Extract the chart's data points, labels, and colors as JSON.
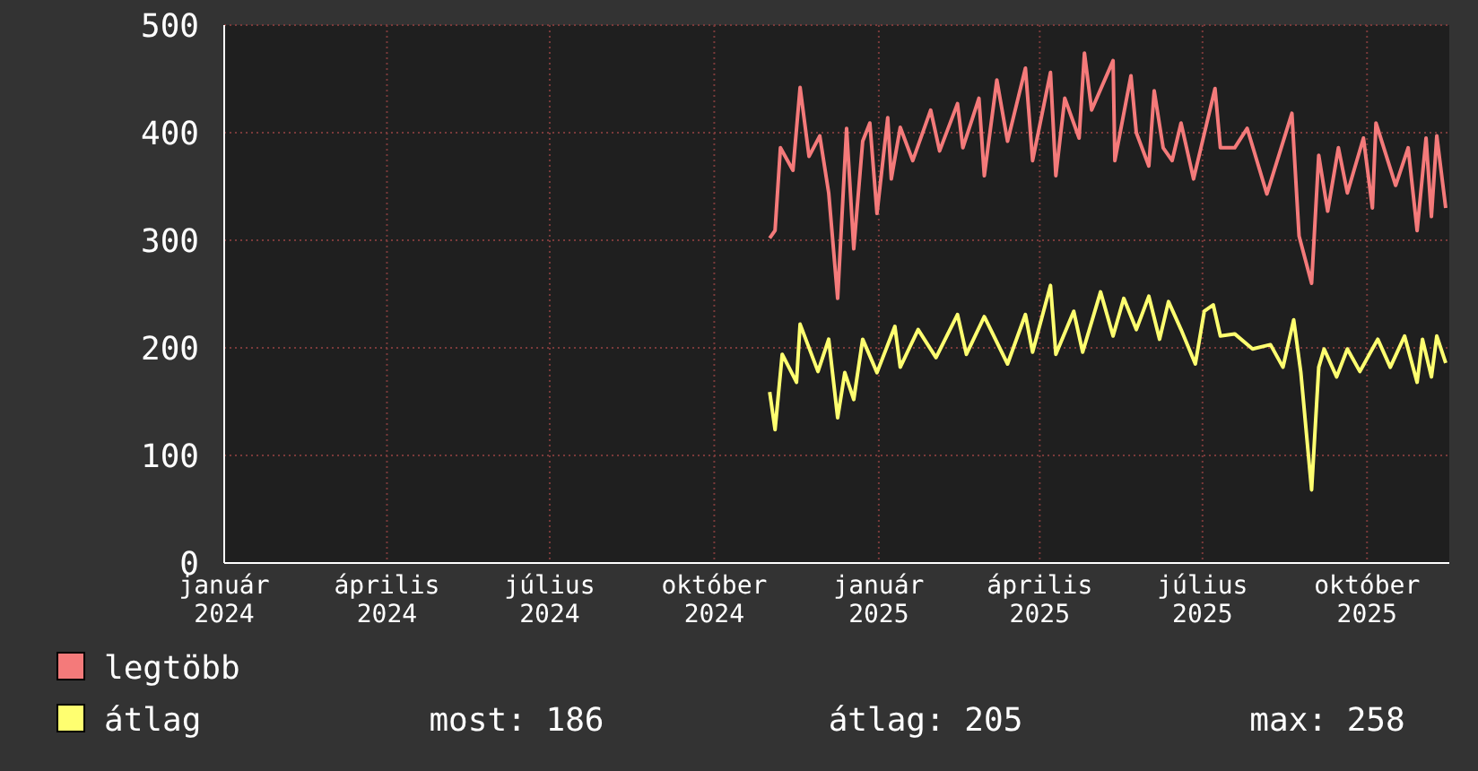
{
  "chart_data": {
    "type": "line",
    "legend": "bottom",
    "grid": true,
    "line_style": "solid",
    "marker": "none",
    "xlim": [
      "2024-01-01",
      "2025-11-16"
    ],
    "xticks": [
      {
        "value": "2024-01-01",
        "label": "január 2024"
      },
      {
        "value": "2024-04-01",
        "label": "április 2024"
      },
      {
        "value": "2024-07-01",
        "label": "július 2024"
      },
      {
        "value": "2024-10-01",
        "label": "október 2024"
      },
      {
        "value": "2025-01-01",
        "label": "január 2025"
      },
      {
        "value": "2025-04-01",
        "label": "április 2025"
      },
      {
        "value": "2025-07-01",
        "label": "július 2025"
      },
      {
        "value": "2025-10-01",
        "label": "október 2025"
      }
    ],
    "ylim": [
      0,
      500
    ],
    "yticks": [
      0,
      100,
      200,
      300,
      400,
      500
    ],
    "annotations": [
      "most: 186",
      "átlag: 205",
      "max: 258"
    ],
    "series": [
      {
        "name": "legtöbb",
        "color": "#f47a7a",
        "x": [
          "2024-11-01",
          "2024-11-04",
          "2024-11-07",
          "2024-11-14",
          "2024-11-18",
          "2024-11-23",
          "2024-11-29",
          "2024-12-04",
          "2024-12-09",
          "2024-12-14",
          "2024-12-18",
          "2024-12-23",
          "2024-12-27",
          "2024-12-31",
          "2025-01-06",
          "2025-01-08",
          "2025-01-13",
          "2025-01-20",
          "2025-01-30",
          "2025-02-04",
          "2025-02-14",
          "2025-02-17",
          "2025-02-26",
          "2025-03-01",
          "2025-03-08",
          "2025-03-14",
          "2025-03-24",
          "2025-03-28",
          "2025-04-07",
          "2025-04-10",
          "2025-04-15",
          "2025-04-23",
          "2025-04-26",
          "2025-04-30",
          "2025-05-12",
          "2025-05-13",
          "2025-05-22",
          "2025-05-25",
          "2025-06-01",
          "2025-06-04",
          "2025-06-09",
          "2025-06-14",
          "2025-06-19",
          "2025-06-26",
          "2025-07-08",
          "2025-07-11",
          "2025-07-19",
          "2025-07-26",
          "2025-08-06",
          "2025-08-20",
          "2025-08-24",
          "2025-08-31",
          "2025-09-04",
          "2025-09-09",
          "2025-09-15",
          "2025-09-20",
          "2025-09-29",
          "2025-10-04",
          "2025-10-06",
          "2025-10-17",
          "2025-10-24",
          "2025-10-29",
          "2025-11-03",
          "2025-11-06",
          "2025-11-09",
          "2025-11-14"
        ],
        "values": [
          302,
          309,
          386,
          365,
          442,
          378,
          397,
          344,
          246,
          404,
          292,
          392,
          409,
          325,
          414,
          357,
          405,
          374,
          421,
          383,
          427,
          386,
          432,
          360,
          449,
          392,
          460,
          374,
          456,
          360,
          432,
          395,
          474,
          421,
          467,
          374,
          453,
          400,
          369,
          439,
          386,
          374,
          409,
          357,
          441,
          386,
          386,
          404,
          343,
          418,
          304,
          260,
          379,
          327,
          386,
          344,
          395,
          330,
          409,
          351,
          386,
          309,
          395,
          322,
          397,
          330
        ]
      },
      {
        "name": "átlag",
        "color": "#ffff70",
        "x": [
          "2024-11-01",
          "2024-11-04",
          "2024-11-08",
          "2024-11-16",
          "2024-11-18",
          "2024-11-28",
          "2024-12-04",
          "2024-12-09",
          "2024-12-13",
          "2024-12-18",
          "2024-12-23",
          "2024-12-31",
          "2025-01-10",
          "2025-01-13",
          "2025-01-23",
          "2025-02-02",
          "2025-02-14",
          "2025-02-19",
          "2025-03-01",
          "2025-03-14",
          "2025-03-24",
          "2025-03-28",
          "2025-04-07",
          "2025-04-10",
          "2025-04-20",
          "2025-04-25",
          "2025-05-05",
          "2025-05-12",
          "2025-05-18",
          "2025-05-25",
          "2025-06-01",
          "2025-06-07",
          "2025-06-12",
          "2025-06-19",
          "2025-06-27",
          "2025-07-02",
          "2025-07-07",
          "2025-07-11",
          "2025-07-19",
          "2025-07-29",
          "2025-08-08",
          "2025-08-15",
          "2025-08-21",
          "2025-08-25",
          "2025-08-31",
          "2025-09-04",
          "2025-09-07",
          "2025-09-14",
          "2025-09-20",
          "2025-09-27",
          "2025-10-07",
          "2025-10-14",
          "2025-10-22",
          "2025-10-29",
          "2025-11-01",
          "2025-11-06",
          "2025-11-09",
          "2025-11-14"
        ],
        "values": [
          159,
          124,
          194,
          168,
          222,
          178,
          208,
          135,
          177,
          152,
          208,
          177,
          220,
          182,
          217,
          191,
          231,
          194,
          229,
          185,
          231,
          196,
          258,
          194,
          234,
          196,
          252,
          211,
          246,
          217,
          248,
          208,
          243,
          217,
          185,
          234,
          240,
          211,
          213,
          199,
          203,
          182,
          226,
          177,
          68,
          182,
          199,
          173,
          199,
          178,
          208,
          182,
          211,
          168,
          208,
          173,
          211,
          186
        ]
      }
    ]
  }
}
